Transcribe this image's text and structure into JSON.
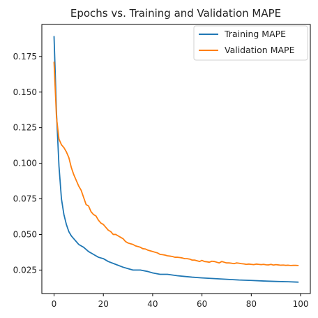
{
  "chart_data": {
    "type": "line",
    "title": "Epochs vs. Training and Validation MAPE",
    "xlabel": "",
    "ylabel": "",
    "xlim": [
      -4.95,
      103.95
    ],
    "ylim": [
      0.0085,
      0.1975
    ],
    "x_ticks": [
      0,
      20,
      40,
      60,
      80,
      100
    ],
    "y_ticks": [
      0.025,
      0.05,
      0.075,
      0.1,
      0.125,
      0.15,
      0.175
    ],
    "x_tick_labels": [
      "0",
      "20",
      "40",
      "60",
      "80",
      "100"
    ],
    "y_tick_labels": [
      "0.025",
      "0.050",
      "0.075",
      "0.100",
      "0.125",
      "0.150",
      "0.175"
    ],
    "grid": false,
    "legend_position": "top-right",
    "series": [
      {
        "name": "Training MAPE",
        "color": "#1f77b4",
        "x": [
          0,
          1,
          2,
          3,
          4,
          5,
          6,
          7,
          8,
          9,
          10,
          12,
          14,
          16,
          18,
          20,
          22,
          25,
          28,
          30,
          32,
          35,
          38,
          40,
          43,
          46,
          50,
          53,
          56,
          60,
          65,
          70,
          75,
          80,
          85,
          90,
          95,
          99
        ],
        "y": [
          0.189,
          0.135,
          0.098,
          0.075,
          0.064,
          0.057,
          0.052,
          0.049,
          0.047,
          0.045,
          0.043,
          0.041,
          0.038,
          0.036,
          0.034,
          0.033,
          0.031,
          0.029,
          0.027,
          0.026,
          0.025,
          0.025,
          0.024,
          0.023,
          0.022,
          0.022,
          0.021,
          0.0205,
          0.02,
          0.0195,
          0.019,
          0.0185,
          0.018,
          0.0177,
          0.0173,
          0.017,
          0.0168,
          0.0165
        ]
      },
      {
        "name": "Validation MAPE",
        "color": "#ff7f0e",
        "x": [
          0,
          1,
          2,
          3,
          4,
          5,
          6,
          7,
          8,
          9,
          10,
          11,
          12,
          13,
          14,
          15,
          16,
          17,
          18,
          19,
          20,
          21,
          22,
          23,
          24,
          25,
          26,
          27,
          28,
          29,
          30,
          31,
          32,
          33,
          34,
          35,
          36,
          37,
          38,
          39,
          40,
          41,
          42,
          43,
          44,
          45,
          46,
          47,
          48,
          49,
          50,
          51,
          52,
          53,
          54,
          55,
          56,
          57,
          58,
          59,
          60,
          61,
          62,
          63,
          64,
          65,
          66,
          67,
          68,
          69,
          70,
          71,
          72,
          73,
          74,
          75,
          76,
          77,
          78,
          79,
          80,
          81,
          82,
          83,
          84,
          85,
          86,
          87,
          88,
          89,
          90,
          91,
          92,
          93,
          94,
          95,
          96,
          97,
          98,
          99
        ],
        "y": [
          0.171,
          0.132,
          0.117,
          0.113,
          0.111,
          0.108,
          0.104,
          0.097,
          0.092,
          0.088,
          0.084,
          0.081,
          0.076,
          0.071,
          0.07,
          0.066,
          0.064,
          0.063,
          0.06,
          0.058,
          0.057,
          0.055,
          0.053,
          0.052,
          0.05,
          0.05,
          0.049,
          0.048,
          0.047,
          0.045,
          0.044,
          0.0435,
          0.043,
          0.042,
          0.0415,
          0.041,
          0.04,
          0.0398,
          0.039,
          0.0385,
          0.038,
          0.0375,
          0.037,
          0.036,
          0.0358,
          0.0355,
          0.035,
          0.0348,
          0.0345,
          0.034,
          0.034,
          0.0338,
          0.0335,
          0.033,
          0.033,
          0.0327,
          0.032,
          0.032,
          0.0315,
          0.031,
          0.0318,
          0.031,
          0.0308,
          0.0305,
          0.0312,
          0.031,
          0.0305,
          0.03,
          0.031,
          0.0305,
          0.03,
          0.03,
          0.0298,
          0.0295,
          0.03,
          0.0298,
          0.0295,
          0.0293,
          0.029,
          0.0292,
          0.029,
          0.0288,
          0.0292,
          0.029,
          0.0288,
          0.029,
          0.0287,
          0.0286,
          0.029,
          0.0285,
          0.0288,
          0.0286,
          0.0284,
          0.0285,
          0.0283,
          0.0284,
          0.0282,
          0.0283,
          0.0283,
          0.0282
        ]
      }
    ]
  }
}
